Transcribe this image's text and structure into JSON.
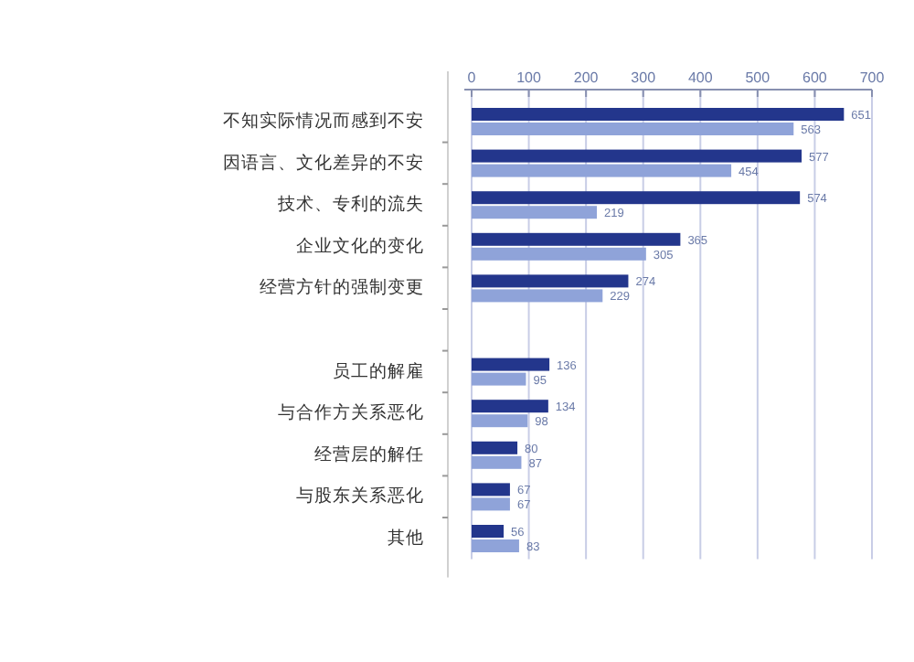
{
  "chart_data": {
    "type": "bar",
    "orientation": "horizontal",
    "categories": [
      "不知实际情况而感到不安",
      "因语言、文化差异的不安",
      "技术、专利的流失",
      "企业文化的变化",
      "经营方针的强制变更",
      null,
      "员工的解雇",
      "与合作方关系恶化",
      "经营层的解任",
      "与股东关系恶化",
      "其他"
    ],
    "series": [
      {
        "color": "#23368c",
        "values": [
          651,
          577,
          574,
          365,
          274,
          null,
          136,
          134,
          80,
          67,
          56
        ]
      },
      {
        "color": "#8fa3d9",
        "values": [
          563,
          454,
          219,
          305,
          229,
          null,
          95,
          98,
          87,
          67,
          83
        ]
      }
    ],
    "xlim": [
      0,
      700
    ],
    "xticks": [
      0,
      100,
      200,
      300,
      400,
      500,
      600,
      700
    ],
    "grid": "x",
    "data_labels": true
  }
}
